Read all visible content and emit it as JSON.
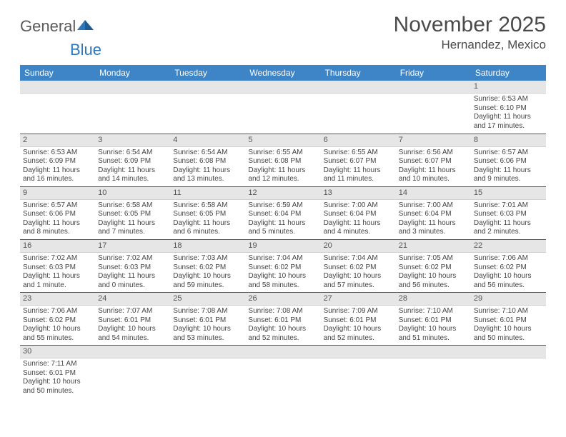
{
  "brand": {
    "part1": "General",
    "part2": "Blue"
  },
  "title": "November 2025",
  "location": "Hernandez, Mexico",
  "colors": {
    "header_bg": "#3d85c6",
    "header_fg": "#ffffff",
    "daynum_bg": "#e6e6e6",
    "row_divider": "#2f5f8f",
    "text": "#444444",
    "title_text": "#4a4a4a",
    "logo_gray": "#5a5a5a",
    "logo_blue": "#2f77bb"
  },
  "weekdays": [
    "Sunday",
    "Monday",
    "Tuesday",
    "Wednesday",
    "Thursday",
    "Friday",
    "Saturday"
  ],
  "weeks": [
    [
      null,
      null,
      null,
      null,
      null,
      null,
      {
        "n": "1",
        "sr": "Sunrise: 6:53 AM",
        "ss": "Sunset: 6:10 PM",
        "dl": "Daylight: 11 hours and 17 minutes."
      }
    ],
    [
      {
        "n": "2",
        "sr": "Sunrise: 6:53 AM",
        "ss": "Sunset: 6:09 PM",
        "dl": "Daylight: 11 hours and 16 minutes."
      },
      {
        "n": "3",
        "sr": "Sunrise: 6:54 AM",
        "ss": "Sunset: 6:09 PM",
        "dl": "Daylight: 11 hours and 14 minutes."
      },
      {
        "n": "4",
        "sr": "Sunrise: 6:54 AM",
        "ss": "Sunset: 6:08 PM",
        "dl": "Daylight: 11 hours and 13 minutes."
      },
      {
        "n": "5",
        "sr": "Sunrise: 6:55 AM",
        "ss": "Sunset: 6:08 PM",
        "dl": "Daylight: 11 hours and 12 minutes."
      },
      {
        "n": "6",
        "sr": "Sunrise: 6:55 AM",
        "ss": "Sunset: 6:07 PM",
        "dl": "Daylight: 11 hours and 11 minutes."
      },
      {
        "n": "7",
        "sr": "Sunrise: 6:56 AM",
        "ss": "Sunset: 6:07 PM",
        "dl": "Daylight: 11 hours and 10 minutes."
      },
      {
        "n": "8",
        "sr": "Sunrise: 6:57 AM",
        "ss": "Sunset: 6:06 PM",
        "dl": "Daylight: 11 hours and 9 minutes."
      }
    ],
    [
      {
        "n": "9",
        "sr": "Sunrise: 6:57 AM",
        "ss": "Sunset: 6:06 PM",
        "dl": "Daylight: 11 hours and 8 minutes."
      },
      {
        "n": "10",
        "sr": "Sunrise: 6:58 AM",
        "ss": "Sunset: 6:05 PM",
        "dl": "Daylight: 11 hours and 7 minutes."
      },
      {
        "n": "11",
        "sr": "Sunrise: 6:58 AM",
        "ss": "Sunset: 6:05 PM",
        "dl": "Daylight: 11 hours and 6 minutes."
      },
      {
        "n": "12",
        "sr": "Sunrise: 6:59 AM",
        "ss": "Sunset: 6:04 PM",
        "dl": "Daylight: 11 hours and 5 minutes."
      },
      {
        "n": "13",
        "sr": "Sunrise: 7:00 AM",
        "ss": "Sunset: 6:04 PM",
        "dl": "Daylight: 11 hours and 4 minutes."
      },
      {
        "n": "14",
        "sr": "Sunrise: 7:00 AM",
        "ss": "Sunset: 6:04 PM",
        "dl": "Daylight: 11 hours and 3 minutes."
      },
      {
        "n": "15",
        "sr": "Sunrise: 7:01 AM",
        "ss": "Sunset: 6:03 PM",
        "dl": "Daylight: 11 hours and 2 minutes."
      }
    ],
    [
      {
        "n": "16",
        "sr": "Sunrise: 7:02 AM",
        "ss": "Sunset: 6:03 PM",
        "dl": "Daylight: 11 hours and 1 minute."
      },
      {
        "n": "17",
        "sr": "Sunrise: 7:02 AM",
        "ss": "Sunset: 6:03 PM",
        "dl": "Daylight: 11 hours and 0 minutes."
      },
      {
        "n": "18",
        "sr": "Sunrise: 7:03 AM",
        "ss": "Sunset: 6:02 PM",
        "dl": "Daylight: 10 hours and 59 minutes."
      },
      {
        "n": "19",
        "sr": "Sunrise: 7:04 AM",
        "ss": "Sunset: 6:02 PM",
        "dl": "Daylight: 10 hours and 58 minutes."
      },
      {
        "n": "20",
        "sr": "Sunrise: 7:04 AM",
        "ss": "Sunset: 6:02 PM",
        "dl": "Daylight: 10 hours and 57 minutes."
      },
      {
        "n": "21",
        "sr": "Sunrise: 7:05 AM",
        "ss": "Sunset: 6:02 PM",
        "dl": "Daylight: 10 hours and 56 minutes."
      },
      {
        "n": "22",
        "sr": "Sunrise: 7:06 AM",
        "ss": "Sunset: 6:02 PM",
        "dl": "Daylight: 10 hours and 56 minutes."
      }
    ],
    [
      {
        "n": "23",
        "sr": "Sunrise: 7:06 AM",
        "ss": "Sunset: 6:02 PM",
        "dl": "Daylight: 10 hours and 55 minutes."
      },
      {
        "n": "24",
        "sr": "Sunrise: 7:07 AM",
        "ss": "Sunset: 6:01 PM",
        "dl": "Daylight: 10 hours and 54 minutes."
      },
      {
        "n": "25",
        "sr": "Sunrise: 7:08 AM",
        "ss": "Sunset: 6:01 PM",
        "dl": "Daylight: 10 hours and 53 minutes."
      },
      {
        "n": "26",
        "sr": "Sunrise: 7:08 AM",
        "ss": "Sunset: 6:01 PM",
        "dl": "Daylight: 10 hours and 52 minutes."
      },
      {
        "n": "27",
        "sr": "Sunrise: 7:09 AM",
        "ss": "Sunset: 6:01 PM",
        "dl": "Daylight: 10 hours and 52 minutes."
      },
      {
        "n": "28",
        "sr": "Sunrise: 7:10 AM",
        "ss": "Sunset: 6:01 PM",
        "dl": "Daylight: 10 hours and 51 minutes."
      },
      {
        "n": "29",
        "sr": "Sunrise: 7:10 AM",
        "ss": "Sunset: 6:01 PM",
        "dl": "Daylight: 10 hours and 50 minutes."
      }
    ],
    [
      {
        "n": "30",
        "sr": "Sunrise: 7:11 AM",
        "ss": "Sunset: 6:01 PM",
        "dl": "Daylight: 10 hours and 50 minutes."
      },
      null,
      null,
      null,
      null,
      null,
      null
    ]
  ]
}
